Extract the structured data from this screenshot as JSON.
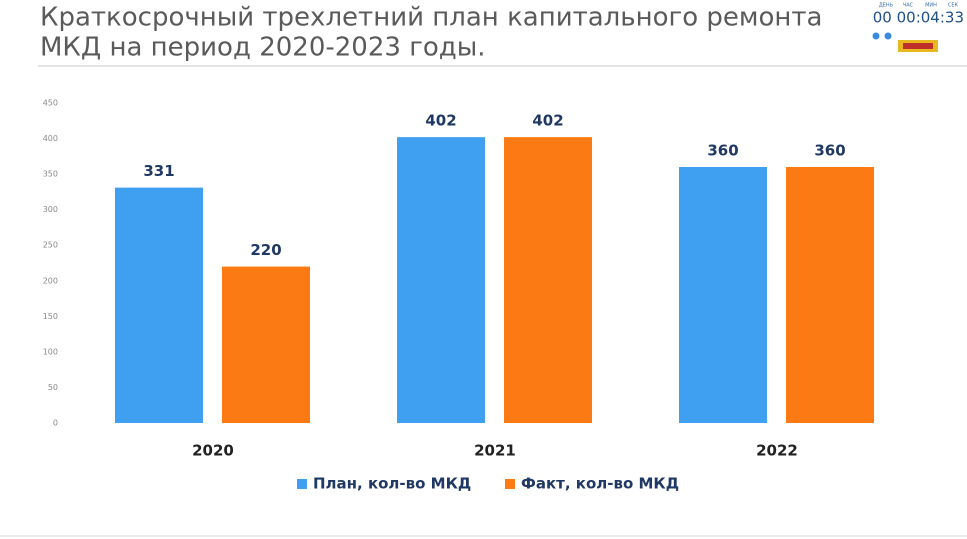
{
  "chart_data": {
    "type": "bar",
    "title": [
      "Краткосрочный трехлетний план капитального ремонта",
      "МКД на период 2020-2023 годы."
    ],
    "categories": [
      "2020",
      "2021",
      "2022"
    ],
    "series": [
      {
        "name": "План, кол-во МКД",
        "color": "#3fa0f2",
        "values": [
          331,
          402,
          360
        ]
      },
      {
        "name": "Факт, кол-во МКД",
        "color": "#fb7a14",
        "values": [
          220,
          402,
          360
        ]
      }
    ],
    "ylim": [
      0,
      450
    ],
    "yticks": [
      0,
      50,
      100,
      150,
      200,
      250,
      300,
      350,
      400,
      450
    ],
    "grid": false,
    "legend": "bottom"
  },
  "timer": {
    "labels": [
      "ДЕНЬ",
      "ЧАС",
      "МИН",
      "СЕК"
    ],
    "value": "00 00:04:33"
  }
}
